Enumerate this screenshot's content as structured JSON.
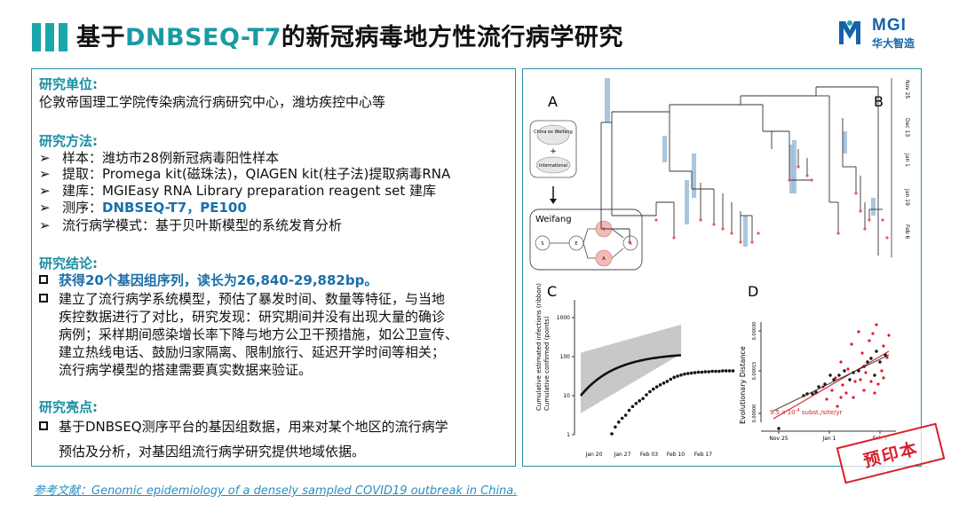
{
  "header": {
    "title_pre": "基于",
    "title_hl": "DNBSEQ-T7",
    "title_post": "的新冠病毒地方性流行病学研究",
    "logo_text": "MGI",
    "logo_sub": "华大智造"
  },
  "sections": {
    "unit_heading": "研究单位:",
    "unit_text": "伦敦帝国理工学院传染病流行病研究中心，潍坊疾控中心等",
    "method_heading": "研究方法:",
    "method_items": [
      "样本：潍坊市28例新冠病毒阳性样本",
      "提取：Promega kit(磁珠法)，QIAGEN kit(柱子法)提取病毒RNA",
      "建库：MGIEasy RNA Library preparation reagent set 建库"
    ],
    "seq_prefix": "测序：",
    "seq_bold": "DNBSEQ-T7，PE100",
    "method_last": "流行病学模式：基于贝叶斯模型的系统发育分析",
    "result_heading": "研究结论:",
    "result_bold": "获得20个基因组序列，读长为26,840-29,882bp。",
    "result_lines": [
      "建立了流行病学系统模型，预估了暴发时间、数量等特征，与当地",
      "疾控数据进行了对比，研究发现：研究期间并没有出现大量的确诊",
      "病例；采样期间感染增长率下降与地方公卫干预措施，如公卫宣传、",
      "建立热线电话、鼓励归家隔离、限制旅行、延迟开学时间等相关；",
      "流行病学模型的搭建需要真实数据来验证。"
    ],
    "highlight_heading": "研究亮点:",
    "highlight_lines": [
      "基于DNBSEQ测序平台的基因组数据，用来对某个地区的流行病学",
      "预估及分析，对基因组流行病学研究提供地域依据。"
    ]
  },
  "reference": "参考文献：Genomic epidemiology of a densely sampled COVID19 outbreak in China.",
  "stamp": "预印本",
  "figure": {
    "panel_a": "A",
    "panel_b": "B",
    "panel_c": "C",
    "panel_d": "D",
    "china_ex_weifang": "China ex Weifang",
    "plus": "+",
    "international": "International",
    "weifang": "Weifang",
    "states": [
      "S",
      "E",
      "I",
      "R",
      "A"
    ],
    "tree_dates": [
      "Nov 25",
      "Dec 13",
      "Jan 1",
      "Jan 19",
      "Feb 6"
    ],
    "c_ylabel1": "Cumulative estimated infections (ribbon)",
    "c_ylabel2": "Cumulative confirmed (points)",
    "c_yticks": [
      "1000",
      "100",
      "10",
      "1"
    ],
    "c_xticks": [
      "Jan 20",
      "Jan 27",
      "Feb 03",
      "Feb 10",
      "Feb 17"
    ],
    "d_ylabel": "Evolutionary Distance",
    "d_yticks": [
      "0.00030",
      "0.00015",
      "0.00000"
    ],
    "d_xticks": [
      "Nov 25",
      "Jan 1",
      "Feb 6"
    ],
    "d_rate": "9.5 x 10",
    "d_rate_exp": "-4",
    "d_rate_unit": " subst./site/yr"
  },
  "colors": {
    "teal": "#19a7ac",
    "heading": "#1a8fa2",
    "blue": "#1a6fa8",
    "stamp": "#d7202a"
  }
}
